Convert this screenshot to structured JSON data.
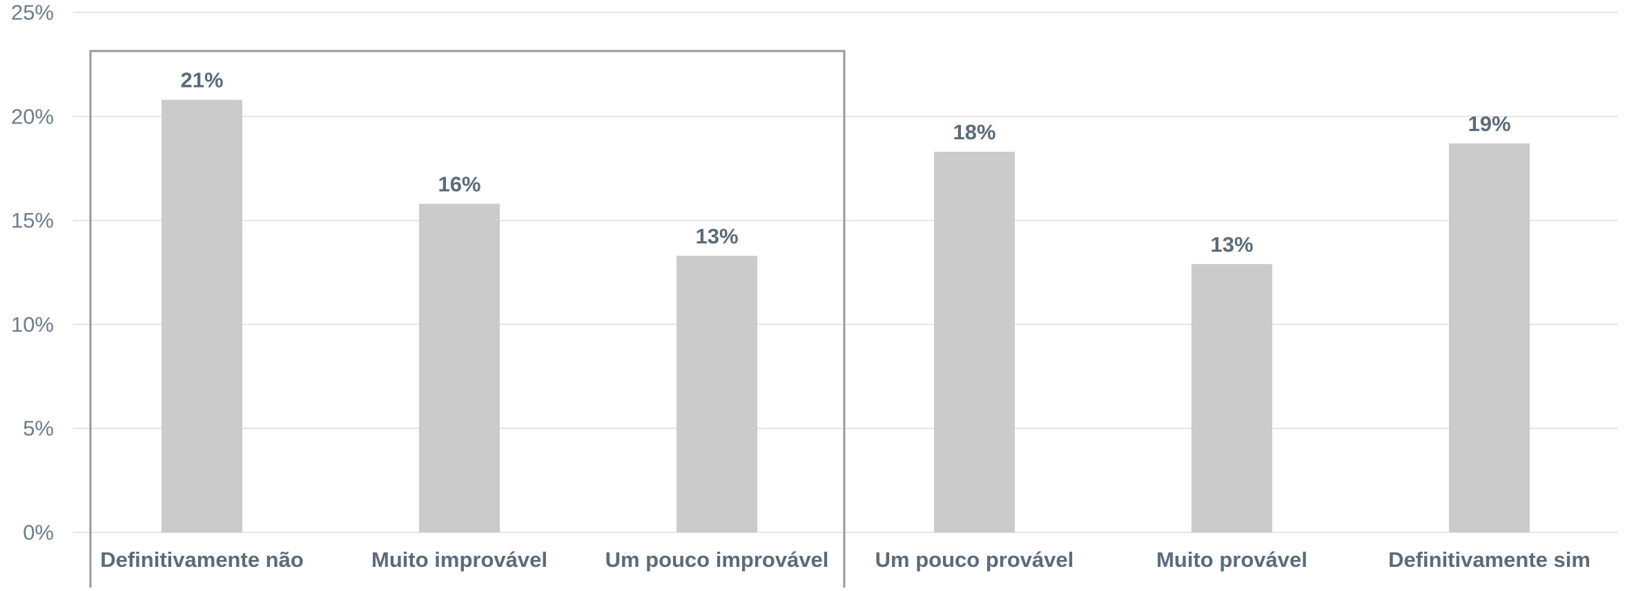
{
  "chart_data": {
    "type": "bar",
    "categories": [
      "Definitivamente não",
      "Muito improvável",
      "Um pouco improvável",
      "Um pouco provável",
      "Muito provável",
      "Definitivamente sim"
    ],
    "values": [
      20.8,
      15.8,
      13.3,
      18.3,
      12.9,
      18.7
    ],
    "data_labels": [
      "21%",
      "16%",
      "13%",
      "18%",
      "13%",
      "19%"
    ],
    "y_ticks": [
      0,
      5,
      10,
      15,
      20,
      25
    ],
    "y_tick_labels": [
      "0%",
      "5%",
      "10%",
      "15%",
      "20%",
      "25%"
    ],
    "ylim": [
      0,
      25
    ],
    "title": "",
    "xlabel": "",
    "ylabel": "",
    "grid": true,
    "legend": "none",
    "highlight_group": {
      "categories": [
        "Definitivamente não",
        "Muito improvável",
        "Um pouco improvável"
      ]
    },
    "colors": {
      "bar": "#CBCBCB",
      "label_text": "#5A6B7B",
      "axis_text": "#6B7D8F",
      "grid": "#DDDDDD",
      "highlight_border": "#9A9A9A"
    }
  }
}
